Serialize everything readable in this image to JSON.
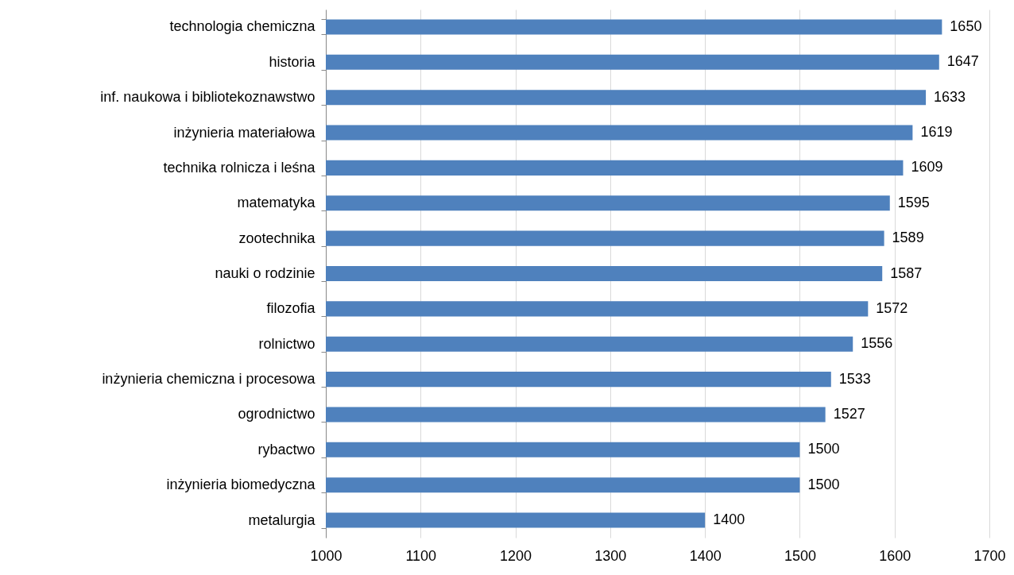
{
  "chart_data": {
    "type": "bar",
    "orientation": "horizontal",
    "categories": [
      "technologia chemiczna",
      "historia",
      "inf. naukowa i bibliotekoznawstwo",
      "inżynieria materiałowa",
      "technika rolnicza i leśna",
      "matematyka",
      "zootechnika",
      "nauki o rodzinie",
      "filozofia",
      "rolnictwo",
      "inżynieria chemiczna i procesowa",
      "ogrodnictwo",
      "rybactwo",
      "inżynieria biomedyczna",
      "metalurgia"
    ],
    "values": [
      1650,
      1647,
      1633,
      1619,
      1609,
      1595,
      1589,
      1587,
      1572,
      1556,
      1533,
      1527,
      1500,
      1500,
      1400
    ],
    "color": "#4f81bd",
    "xlim": [
      1000,
      1700
    ],
    "xticks": [
      1000,
      1100,
      1200,
      1300,
      1400,
      1500,
      1600,
      1700
    ],
    "grid": "x",
    "data_labels": true
  }
}
